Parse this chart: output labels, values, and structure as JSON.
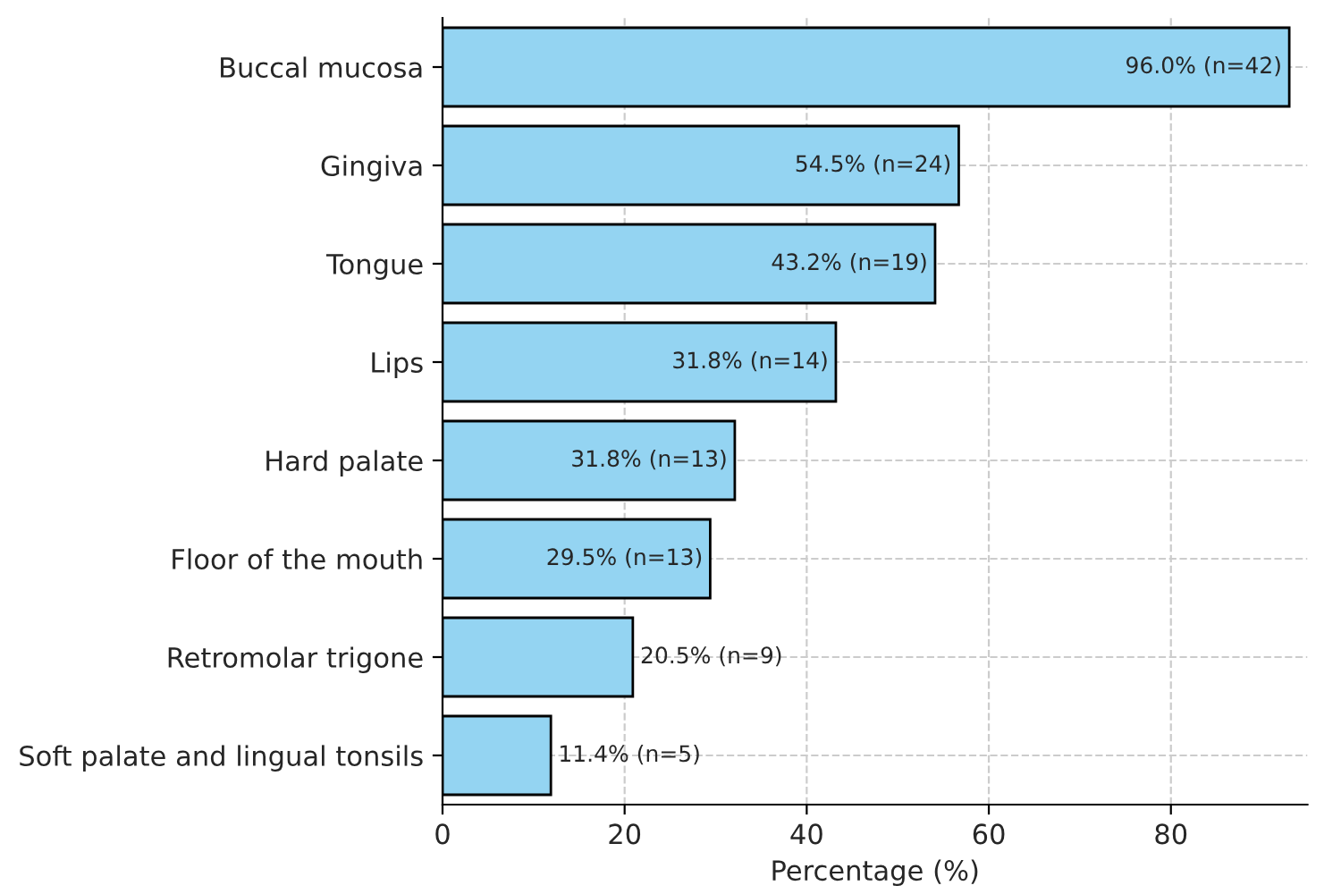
{
  "chart_data": {
    "type": "bar",
    "orientation": "horizontal",
    "xlabel": "Percentage (%)",
    "categories": [
      "Buccal mucosa",
      "Gingiva",
      "Tongue",
      "Lips",
      "Hard palate",
      "Floor of the mouth",
      "Retromolar trigone",
      "Soft palate and lingual tonsils"
    ],
    "values": [
      93.0,
      56.7,
      54.1,
      43.2,
      32.1,
      29.4,
      20.9,
      11.9
    ],
    "annotations": [
      {
        "text": "96.0% (n=42)",
        "x": 93.0,
        "y": "Buccal mucosa"
      },
      {
        "text": "54.5% (n=24)",
        "x": 56.7,
        "y": "Gingiva"
      },
      {
        "text": "43.2% (n=19)",
        "x": 54.1,
        "y": "Tongue"
      },
      {
        "text": "31.8% (n=14)",
        "x": 43.2,
        "y": "Lips"
      },
      {
        "text": "31.8% (n=13)",
        "x": 32.1,
        "y": "Hard palate"
      },
      {
        "text": "29.5% (n=13)",
        "x": 29.4,
        "y": "Floor of the mouth"
      },
      {
        "text": "20.5% (n=9)",
        "x": 20.9,
        "y": "Retromolar trigone"
      },
      {
        "text": "11.4% (n=5)",
        "x": 11.9,
        "y": "Soft palate and lingual tonsils"
      }
    ],
    "color": "#94d4f2",
    "xlim": [
      0,
      95
    ],
    "xticks": [
      0,
      20,
      40,
      60,
      80
    ],
    "grid": true
  }
}
